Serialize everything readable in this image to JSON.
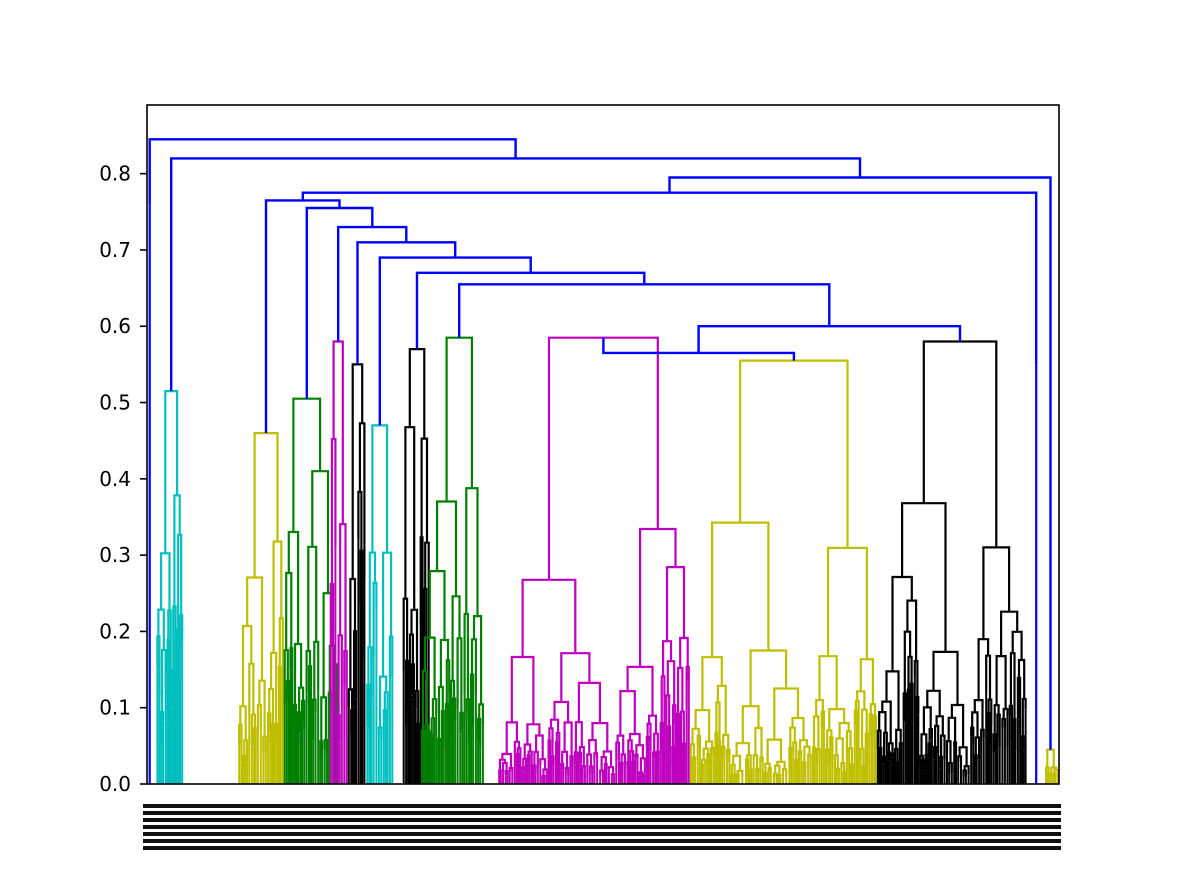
{
  "chart_data": {
    "type": "dendrogram",
    "title": "",
    "xlabel": "",
    "ylabel": "",
    "ylim": [
      0,
      0.89
    ],
    "yticks": [
      0.0,
      0.1,
      0.2,
      0.3,
      0.4,
      0.5,
      0.6,
      0.7,
      0.8
    ],
    "ytick_labels": [
      "0.0",
      "0.1",
      "0.2",
      "0.3",
      "0.4",
      "0.5",
      "0.6",
      "0.7",
      "0.8"
    ],
    "leaf_count": 300,
    "leaf_labels_visible": "illegible (dense overlapping leaf labels)",
    "root_height": 0.845,
    "colors": {
      "link_above_threshold": "#0000ff",
      "cluster_palette": [
        "#00bfbf",
        "#bfbf00",
        "#008000",
        "#bf00bf",
        "#000000"
      ]
    },
    "clusters": [
      {
        "color": "#00bfbf",
        "leaf_range": [
          0.01,
          0.04
        ],
        "top": 0.515
      },
      {
        "color": "#bfbf00",
        "leaf_range": [
          0.1,
          0.15
        ],
        "top": 0.46
      },
      {
        "color": "#008000",
        "leaf_range": [
          0.15,
          0.21
        ],
        "top": 0.505
      },
      {
        "color": "#bf00bf",
        "leaf_range": [
          0.2,
          0.22
        ],
        "top": 0.58
      },
      {
        "color": "#00bfbf",
        "leaf_range": [
          0.24,
          0.27
        ],
        "top": 0.47
      },
      {
        "color": "#000000",
        "leaf_range": [
          0.22,
          0.24
        ],
        "top": 0.55
      },
      {
        "color": "#000000",
        "leaf_range": [
          0.28,
          0.31
        ],
        "top": 0.57
      },
      {
        "color": "#008000",
        "leaf_range": [
          0.3,
          0.37
        ],
        "top": 0.585
      },
      {
        "color": "#bf00bf",
        "leaf_range": [
          0.385,
          0.595
        ],
        "top": 0.585
      },
      {
        "color": "#bfbf00",
        "leaf_range": [
          0.595,
          0.8
        ],
        "top": 0.555
      },
      {
        "color": "#000000",
        "leaf_range": [
          0.8,
          0.965
        ],
        "top": 0.58
      },
      {
        "color": "#bfbf00",
        "leaf_range": [
          0.985,
          1.0
        ],
        "top": 0.045
      }
    ],
    "upper_merges": [
      {
        "height": 0.845,
        "description": "root merge"
      },
      {
        "height": 0.82
      },
      {
        "height": 0.795
      },
      {
        "height": 0.775
      },
      {
        "height": 0.765
      },
      {
        "height": 0.755
      },
      {
        "height": 0.73
      },
      {
        "height": 0.71
      },
      {
        "height": 0.69
      },
      {
        "height": 0.67
      },
      {
        "height": 0.655
      },
      {
        "height": 0.6
      },
      {
        "height": 0.565
      }
    ]
  }
}
